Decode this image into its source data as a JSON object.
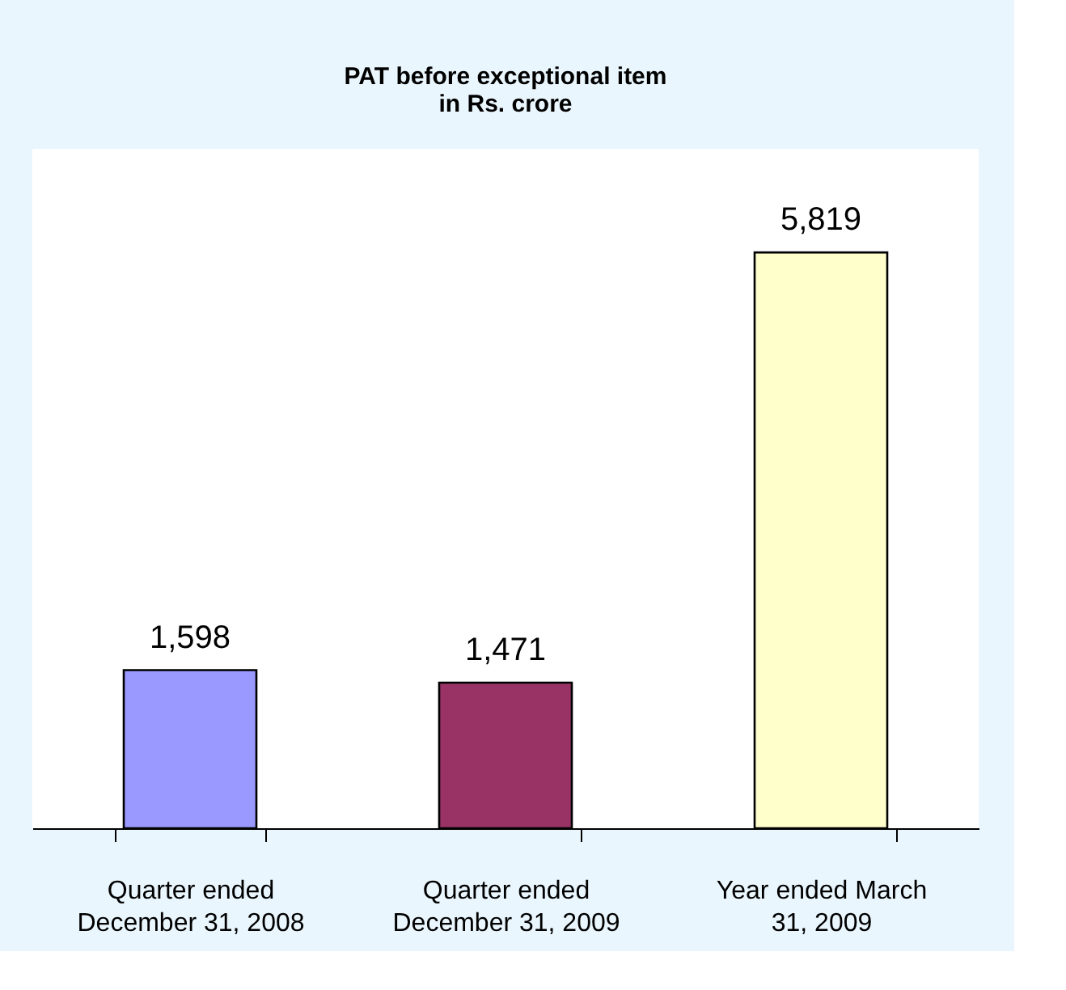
{
  "chart_data": {
    "type": "bar",
    "title": [
      "PAT before exceptional item",
      "in Rs. crore"
    ],
    "categories": [
      "Quarter ended December 31, 2008",
      "Quarter ended December 31, 2009",
      "Year ended March 31, 2009"
    ],
    "values": [
      1598,
      1471,
      5819
    ],
    "colors": [
      "#9999ff",
      "#993366",
      "#ffffcc"
    ],
    "value_labels": [
      "1,598",
      "1,471",
      "5,819"
    ],
    "grid": false
  }
}
